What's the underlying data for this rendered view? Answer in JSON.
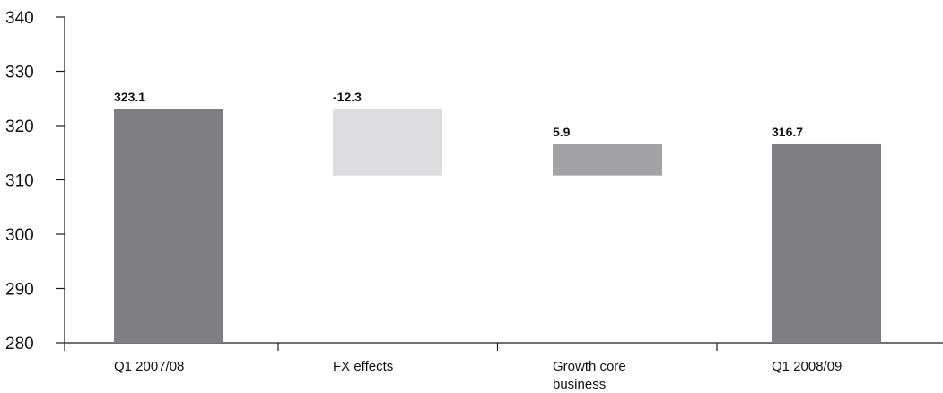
{
  "chart_data": {
    "type": "bar",
    "subtype": "waterfall",
    "title": "",
    "xlabel": "",
    "ylabel": "",
    "ylim": [
      280,
      340
    ],
    "yticks": [
      280,
      290,
      300,
      310,
      320,
      330,
      340
    ],
    "grid": false,
    "categories": [
      [
        "Q1 2007/08"
      ],
      [
        "FX effects"
      ],
      [
        "Growth core",
        "business"
      ],
      [
        "Q1 2008/09"
      ]
    ],
    "bars": [
      {
        "kind": "total",
        "base": 280,
        "top": 323.1,
        "label": "323.1",
        "color": "#7f7e83"
      },
      {
        "kind": "delta",
        "base": 310.8,
        "top": 323.1,
        "label": "-12.3",
        "color": "#dcdcde"
      },
      {
        "kind": "delta",
        "base": 310.8,
        "top": 316.7,
        "label": "5.9",
        "color": "#a3a3a6"
      },
      {
        "kind": "total",
        "base": 280,
        "top": 316.7,
        "label": "316.7",
        "color": "#7f7e83"
      }
    ]
  }
}
